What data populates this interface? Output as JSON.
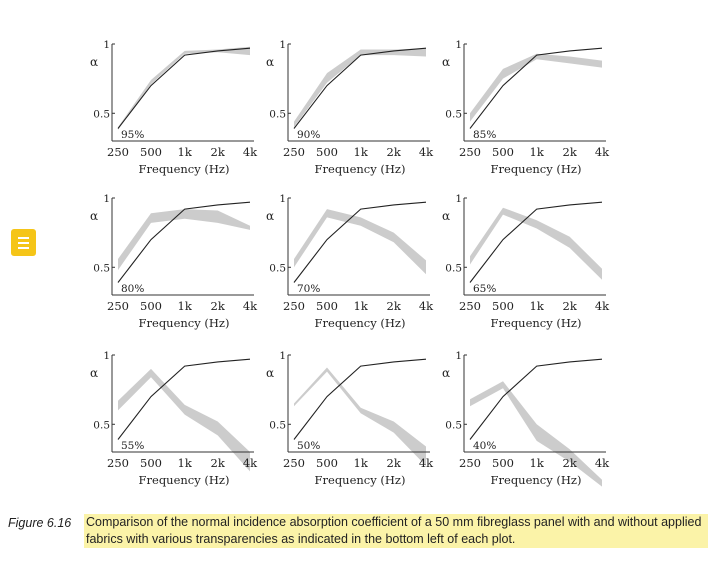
{
  "chart_data": [
    {
      "type": "area",
      "label": "95%",
      "xlabel": "Frequency (Hz)",
      "ylabel": "α",
      "x": [
        "250",
        "500",
        "1k",
        "2k",
        "4k"
      ],
      "ylim": [
        0.3,
        1
      ],
      "yticks": [
        "0.5",
        "1"
      ],
      "bare_panel": [
        0.39,
        0.7,
        0.92,
        0.95,
        0.97
      ],
      "fabric_band": {
        "lower": [
          0.38,
          0.71,
          0.93,
          0.94,
          0.92
        ],
        "upper": [
          0.4,
          0.74,
          0.95,
          0.96,
          0.98
        ]
      }
    },
    {
      "type": "area",
      "label": "90%",
      "xlabel": "Frequency (Hz)",
      "ylabel": "α",
      "x": [
        "250",
        "500",
        "1k",
        "2k",
        "4k"
      ],
      "ylim": [
        0.3,
        1
      ],
      "yticks": [
        "0.5",
        "1"
      ],
      "bare_panel": [
        0.39,
        0.7,
        0.92,
        0.95,
        0.97
      ],
      "fabric_band": {
        "lower": [
          0.4,
          0.72,
          0.92,
          0.92,
          0.91
        ],
        "upper": [
          0.44,
          0.79,
          0.96,
          0.96,
          0.97
        ]
      }
    },
    {
      "type": "area",
      "label": "85%",
      "xlabel": "Frequency (Hz)",
      "ylabel": "α",
      "x": [
        "250",
        "500",
        "1k",
        "2k",
        "4k"
      ],
      "ylim": [
        0.3,
        1
      ],
      "yticks": [
        "0.5",
        "1"
      ],
      "bare_panel": [
        0.39,
        0.7,
        0.92,
        0.95,
        0.97
      ],
      "fabric_band": {
        "lower": [
          0.44,
          0.75,
          0.89,
          0.86,
          0.83
        ],
        "upper": [
          0.5,
          0.82,
          0.93,
          0.91,
          0.88
        ]
      }
    },
    {
      "type": "area",
      "label": "80%",
      "xlabel": "Frequency (Hz)",
      "ylabel": "α",
      "x": [
        "250",
        "500",
        "1k",
        "2k",
        "4k"
      ],
      "ylim": [
        0.3,
        1
      ],
      "yticks": [
        "0.5",
        "1"
      ],
      "bare_panel": [
        0.39,
        0.7,
        0.92,
        0.95,
        0.97
      ],
      "fabric_band": {
        "lower": [
          0.48,
          0.82,
          0.85,
          0.82,
          0.77
        ],
        "upper": [
          0.56,
          0.89,
          0.92,
          0.91,
          0.8
        ]
      }
    },
    {
      "type": "area",
      "label": "70%",
      "xlabel": "Frequency (Hz)",
      "ylabel": "α",
      "x": [
        "250",
        "500",
        "1k",
        "2k",
        "4k"
      ],
      "ylim": [
        0.3,
        1
      ],
      "yticks": [
        "0.5",
        "1"
      ],
      "bare_panel": [
        0.39,
        0.7,
        0.92,
        0.95,
        0.97
      ],
      "fabric_band": {
        "lower": [
          0.5,
          0.86,
          0.8,
          0.68,
          0.45
        ],
        "upper": [
          0.56,
          0.92,
          0.86,
          0.75,
          0.55
        ]
      }
    },
    {
      "type": "area",
      "label": "65%",
      "xlabel": "Frequency (Hz)",
      "ylabel": "α",
      "x": [
        "250",
        "500",
        "1k",
        "2k",
        "4k"
      ],
      "ylim": [
        0.3,
        1
      ],
      "yticks": [
        "0.5",
        "1"
      ],
      "bare_panel": [
        0.39,
        0.7,
        0.92,
        0.95,
        0.97
      ],
      "fabric_band": {
        "lower": [
          0.52,
          0.88,
          0.78,
          0.64,
          0.41
        ],
        "upper": [
          0.58,
          0.93,
          0.84,
          0.72,
          0.49
        ]
      }
    },
    {
      "type": "area",
      "label": "55%",
      "xlabel": "Frequency (Hz)",
      "ylabel": "α",
      "x": [
        "250",
        "500",
        "1k",
        "2k",
        "4k"
      ],
      "ylim": [
        0.3,
        1
      ],
      "yticks": [
        "0.5",
        "1"
      ],
      "bare_panel": [
        0.39,
        0.7,
        0.92,
        0.95,
        0.97
      ],
      "fabric_band": {
        "lower": [
          0.6,
          0.84,
          0.57,
          0.42,
          0.16
        ],
        "upper": [
          0.67,
          0.9,
          0.64,
          0.52,
          0.3
        ]
      }
    },
    {
      "type": "area",
      "label": "50%",
      "xlabel": "Frequency (Hz)",
      "ylabel": "α",
      "x": [
        "250",
        "500",
        "1k",
        "2k",
        "4k"
      ],
      "ylim": [
        0.3,
        1
      ],
      "yticks": [
        "0.5",
        "1"
      ],
      "bare_panel": [
        0.39,
        0.7,
        0.92,
        0.95,
        0.97
      ],
      "fabric_band": {
        "lower": [
          0.63,
          0.88,
          0.58,
          0.44,
          0.2
        ],
        "upper": [
          0.65,
          0.91,
          0.62,
          0.52,
          0.34
        ]
      }
    },
    {
      "type": "area",
      "label": "40%",
      "xlabel": "Frequency (Hz)",
      "ylabel": "α",
      "x": [
        "250",
        "500",
        "1k",
        "2k",
        "4k"
      ],
      "ylim": [
        0.3,
        1
      ],
      "yticks": [
        "0.5",
        "1"
      ],
      "bare_panel": [
        0.39,
        0.7,
        0.92,
        0.95,
        0.97
      ],
      "fabric_band": {
        "lower": [
          0.63,
          0.76,
          0.38,
          0.23,
          0.05
        ],
        "upper": [
          0.68,
          0.81,
          0.5,
          0.32,
          0.1
        ]
      }
    }
  ],
  "caption": {
    "figure_label": "Figure 6.16",
    "text": "Comparison of the normal incidence absorption coefficient of a 50 mm fibreglass panel with and without applied fabrics with various transparencies as indicated in the bottom left of each plot."
  },
  "colors": {
    "bare_line": "#222222",
    "fabric_band": "#cccccc",
    "highlight": "#fbf3a8",
    "note_icon": "#f5c518"
  },
  "icons": {
    "note": "note-icon"
  }
}
